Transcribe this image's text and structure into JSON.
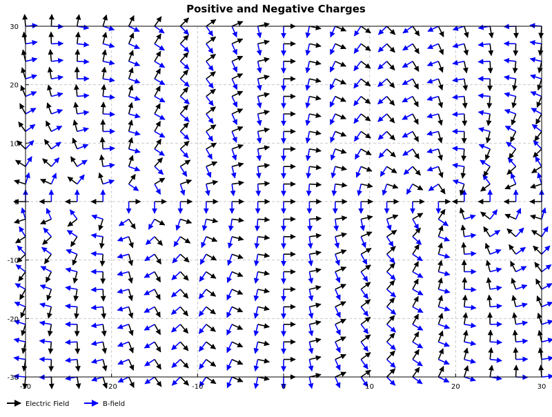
{
  "chart_data": {
    "type": "vector-field",
    "title": "Positive and Negative Charges",
    "xlabel": "",
    "ylabel": "",
    "xlim": [
      -30,
      30
    ],
    "ylim": [
      -30,
      30
    ],
    "x_ticks": [
      -30,
      -20,
      -10,
      0,
      10,
      20,
      30
    ],
    "y_ticks": [
      -30,
      -20,
      -10,
      0,
      10,
      20,
      30
    ],
    "grid": true,
    "legend_position": "bottom-left",
    "field_grid": {
      "x_start": -30,
      "x_end": 30,
      "x_step": 3,
      "y_start": -30,
      "y_end": 30,
      "y_step": 3
    },
    "charges": [
      {
        "sign": "positive",
        "x": -20,
        "y": 0
      },
      {
        "sign": "negative",
        "x": 20,
        "y": 0
      }
    ],
    "series": [
      {
        "name": "Electric Field",
        "color": "#000000"
      },
      {
        "name": "B-field",
        "color": "#0000ff"
      }
    ]
  }
}
